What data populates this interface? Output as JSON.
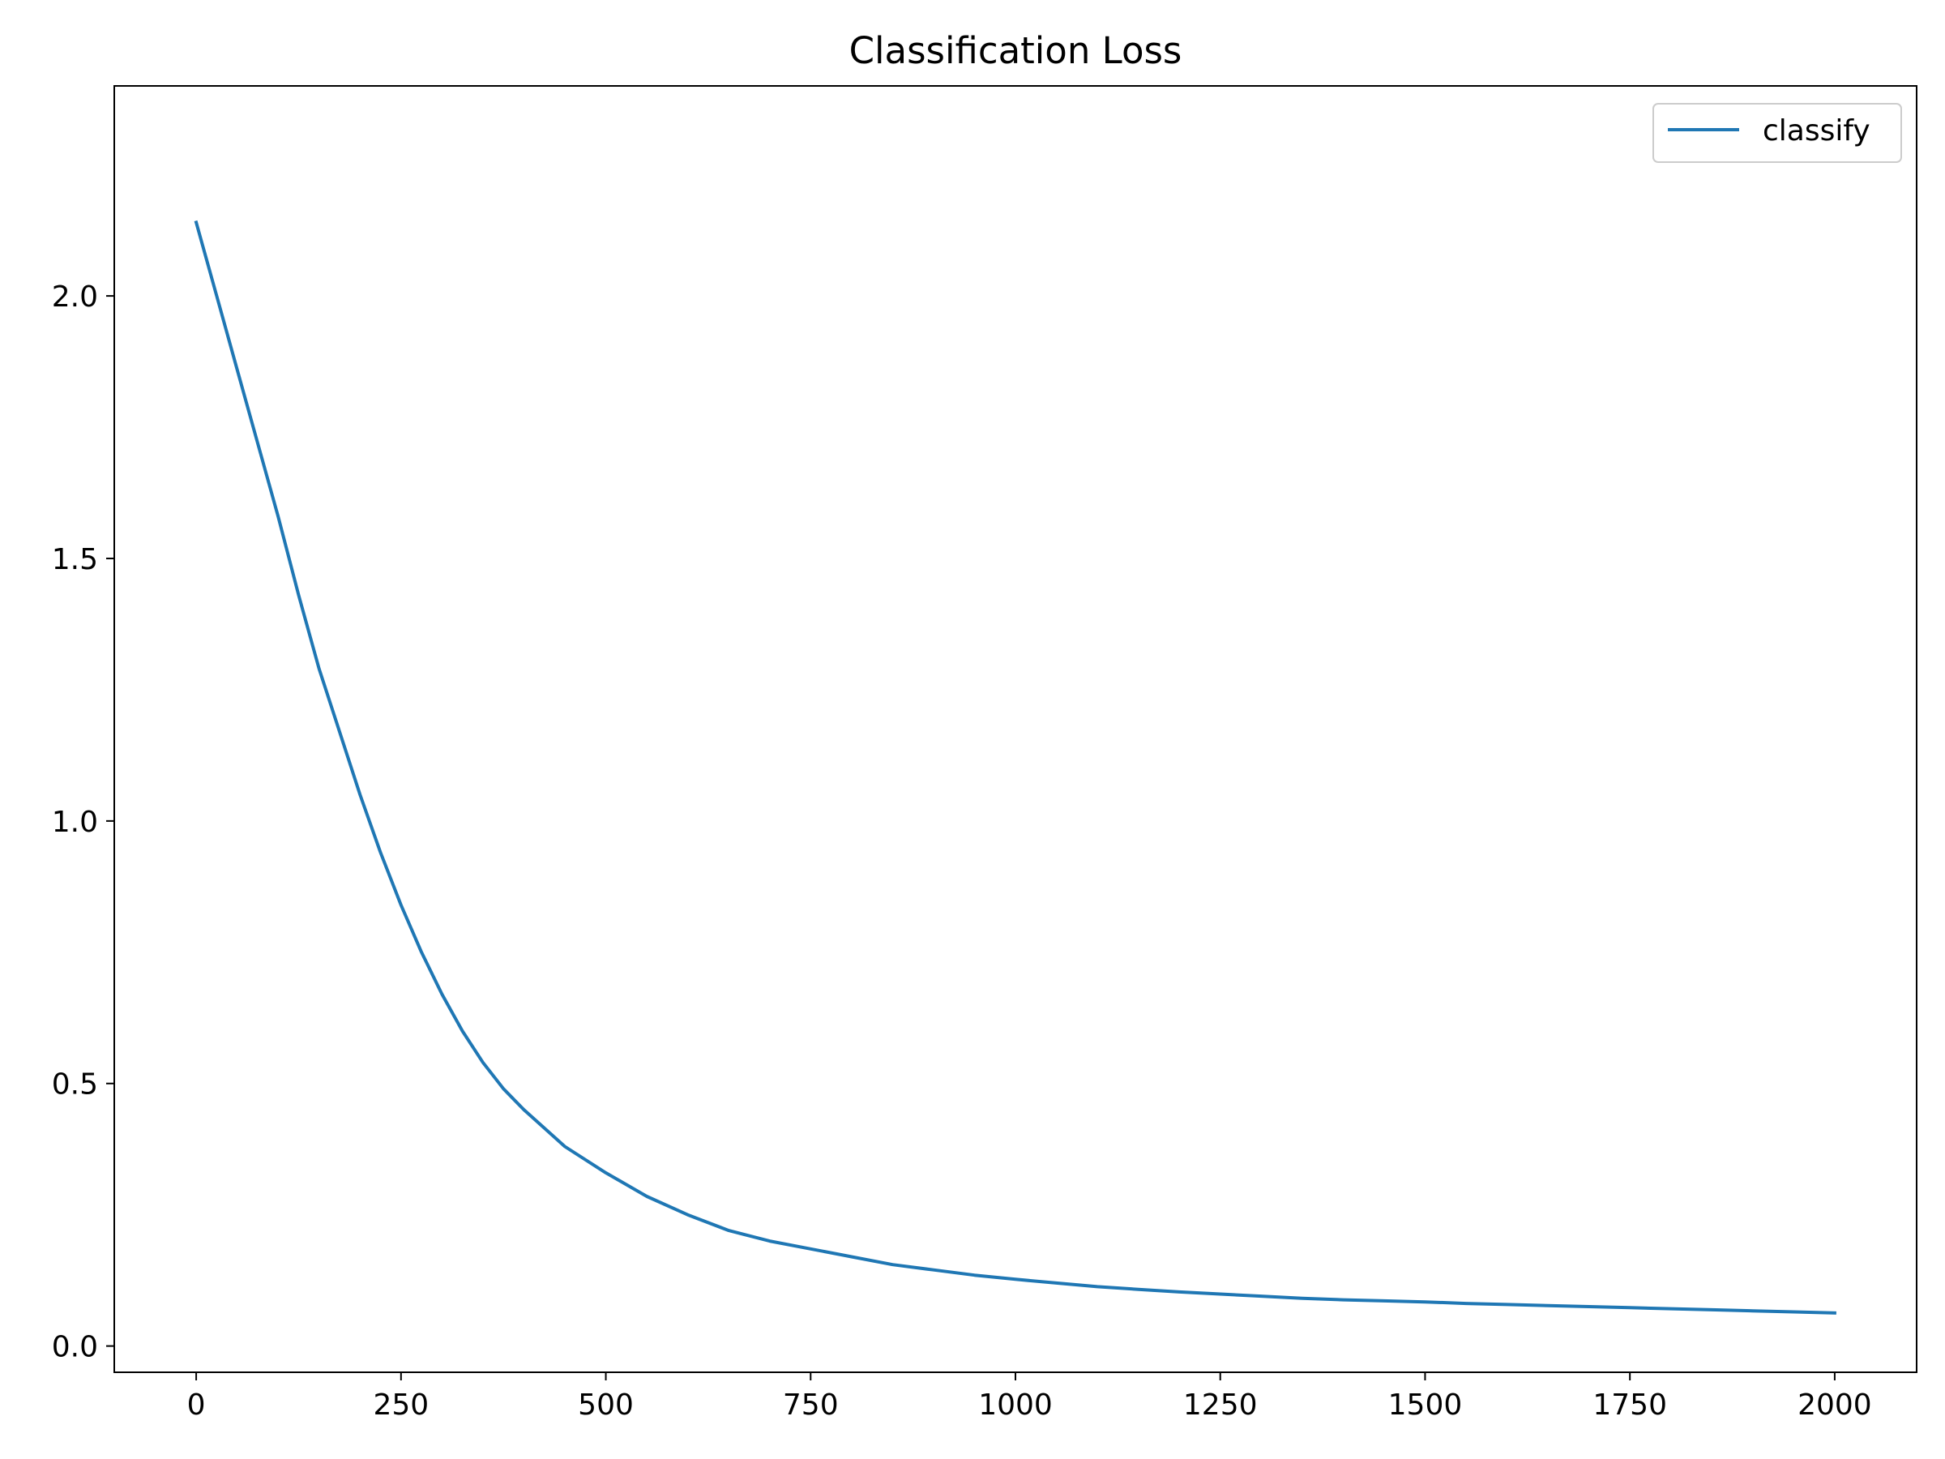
{
  "chart_data": {
    "type": "line",
    "title": "Classification Loss",
    "xlabel": "",
    "ylabel": "",
    "xlim": [
      -100,
      2100
    ],
    "ylim": [
      -0.05,
      2.4
    ],
    "x_ticks": [
      0,
      250,
      500,
      750,
      1000,
      1250,
      1500,
      1750,
      2000
    ],
    "x_tick_labels": [
      "0",
      "250",
      "500",
      "750",
      "1000",
      "1250",
      "1500",
      "1750",
      "2000"
    ],
    "y_ticks": [
      0.0,
      0.5,
      1.0,
      1.5,
      2.0
    ],
    "y_tick_labels": [
      "0.0",
      "0.5",
      "1.0",
      "1.5",
      "2.0"
    ],
    "grid": false,
    "legend_position": "top-right",
    "series": [
      {
        "name": "classify",
        "color": "#1f77b4",
        "x": [
          0,
          25,
          50,
          75,
          100,
          125,
          150,
          175,
          200,
          225,
          250,
          275,
          300,
          325,
          350,
          375,
          400,
          450,
          500,
          550,
          600,
          650,
          700,
          750,
          800,
          850,
          900,
          950,
          1000,
          1050,
          1100,
          1150,
          1200,
          1250,
          1300,
          1350,
          1400,
          1450,
          1500,
          1550,
          1600,
          1650,
          1700,
          1750,
          1800,
          1850,
          1900,
          1950,
          2000
        ],
        "y": [
          2.14,
          2.0,
          1.86,
          1.72,
          1.58,
          1.43,
          1.29,
          1.17,
          1.05,
          0.94,
          0.84,
          0.75,
          0.67,
          0.6,
          0.54,
          0.49,
          0.45,
          0.38,
          0.33,
          0.285,
          0.25,
          0.22,
          0.2,
          0.185,
          0.17,
          0.155,
          0.145,
          0.135,
          0.127,
          0.12,
          0.113,
          0.108,
          0.103,
          0.099,
          0.095,
          0.091,
          0.088,
          0.086,
          0.084,
          0.081,
          0.079,
          0.077,
          0.075,
          0.073,
          0.071,
          0.069,
          0.067,
          0.065,
          0.063
        ]
      }
    ]
  }
}
